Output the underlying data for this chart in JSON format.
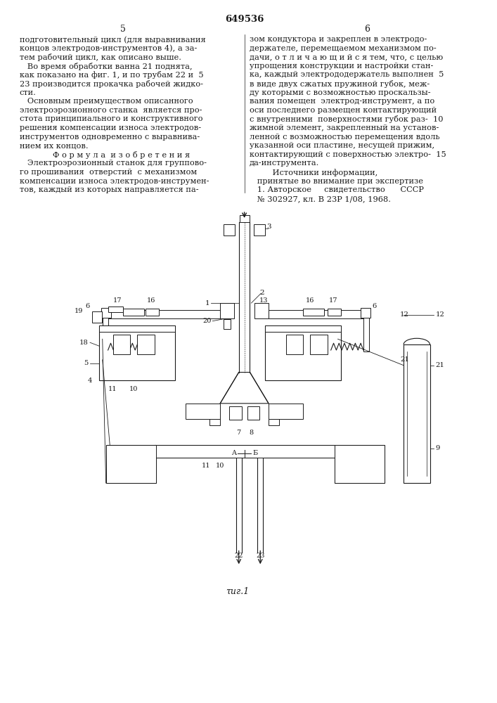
{
  "patent_number": "649536",
  "page_left": "5",
  "page_right": "6",
  "fig_label": "τиг.1",
  "bg_color": "#ffffff",
  "text_color": "#1a1a1a",
  "line_color": "#1a1a1a",
  "left_col_lines": [
    "подготовительный цикл (для выравнивания",
    "концов электродов-инструментов 4), а за-",
    "тем рабочий цикл, как описано выше.",
    "   Во время обработки ванна 21 поднята,",
    "как показано на фиг. 1, и по трубам 22 и  5",
    "23 производится прокачка рабочей жидко-",
    "сти.",
    "   Основным преимуществом описанного",
    "электроэрозионного станка  является про-",
    "стота принципиального и конструктивного",
    "решения компенсации износа электродов-",
    "инструментов одновременно с выравнива-",
    "нием их концов.",
    "Ф о р м у л а  и з о б р е т е н и я",
    "   Электроэрозионный станок для группово-",
    "го прошивания  отверстий  с механизмом",
    "компенсации износа электродов-инструмен-",
    "тов, каждый из которых направляется па-"
  ],
  "right_col_lines": [
    "зом кондуктора и закреплен в электродо-",
    "держателе, перемещаемом механизмом по-",
    "дачи, о т л и ч а ю щ и й с я тем, что, с целью",
    "упрощения конструкции и настройки стан-",
    "ка, каждый электрододержатель выполнен  5",
    "в виде двух сжатых пружиной губок, меж-",
    "ду которыми с возможностью проскальзы-",
    "вания помещен  электрод-инструмент, а по",
    "оси последнего размещен контактирующий",
    "с внутренними  поверхностями губок раз-  10",
    "жимной элемент, закрепленный на установ-",
    "ленной с возможностью перемещения вдоль",
    "указанной оси пластине, несущей прижим,",
    "контактирующий с поверхностью электро-  15",
    "да-инструмента.",
    "         Источники информации,",
    "   принятые во внимание при экспертизе",
    "   1. Авторское     свидетельство      СССР",
    "   № 302927, кл. В 23Р 1/08, 1968."
  ]
}
